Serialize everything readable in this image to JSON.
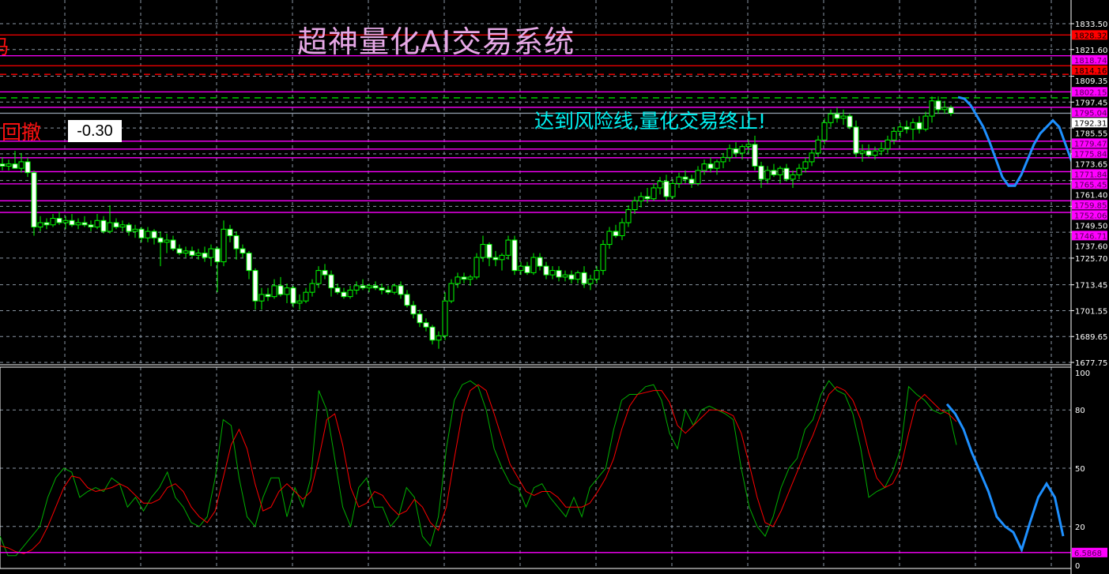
{
  "title": "超神量化AI交易系统",
  "alert_text": "达到风险线,量化交易终止!",
  "drawdown": {
    "label": "回撤",
    "value": "-0.30",
    "partial_char": "码"
  },
  "colors": {
    "background": "#000000",
    "grid": "#8a96a3",
    "candle": "#00ff00",
    "bear_fill": "#ffffff",
    "magenta": "#ff00ff",
    "red": "#ff0000",
    "forecast": "#1e90ff",
    "stoch_k": "#00b000",
    "stoch_d": "#ff0000",
    "alert": "#00f0f0",
    "title": "#e6a8e6"
  },
  "chart_data": [
    {
      "type": "candlestick",
      "ylim": [
        1677.75,
        1833.5
      ],
      "grid": true,
      "y_ticks": [
        "1833.50",
        "1821.60",
        "1809.35",
        "1797.45",
        "1785.55",
        "1773.65",
        "1761.40",
        "1749.50",
        "1737.60",
        "1725.70",
        "1713.45",
        "1701.55",
        "1689.65",
        "1677.75"
      ],
      "ohlc": [
        [
          1769,
          1772,
          1766,
          1768
        ],
        [
          1768,
          1771,
          1766,
          1769
        ],
        [
          1769,
          1775,
          1767,
          1767
        ],
        [
          1767,
          1774,
          1765,
          1770
        ],
        [
          1770,
          1772,
          1763,
          1765
        ],
        [
          1765,
          1766,
          1736,
          1740
        ],
        [
          1740,
          1745,
          1738,
          1742
        ],
        [
          1742,
          1744,
          1739,
          1741
        ],
        [
          1741,
          1746,
          1740,
          1744
        ],
        [
          1744,
          1747,
          1741,
          1742
        ],
        [
          1742,
          1745,
          1739,
          1743
        ],
        [
          1743,
          1746,
          1740,
          1741
        ],
        [
          1741,
          1744,
          1739,
          1742
        ],
        [
          1742,
          1745,
          1740,
          1741
        ],
        [
          1741,
          1743,
          1738,
          1740
        ],
        [
          1740,
          1746,
          1739,
          1743
        ],
        [
          1743,
          1745,
          1737,
          1738
        ],
        [
          1738,
          1750,
          1737,
          1742
        ],
        [
          1742,
          1744,
          1739,
          1740
        ],
        [
          1740,
          1743,
          1738,
          1741
        ],
        [
          1741,
          1742,
          1736,
          1738
        ],
        [
          1738,
          1741,
          1735,
          1739
        ],
        [
          1739,
          1740,
          1733,
          1735
        ],
        [
          1735,
          1740,
          1733,
          1738
        ],
        [
          1738,
          1739,
          1732,
          1735
        ],
        [
          1735,
          1738,
          1722,
          1733
        ],
        [
          1733,
          1737,
          1728,
          1734
        ],
        [
          1734,
          1736,
          1729,
          1730
        ],
        [
          1730,
          1732,
          1727,
          1728
        ],
        [
          1728,
          1731,
          1726,
          1729
        ],
        [
          1729,
          1731,
          1726,
          1727
        ],
        [
          1727,
          1730,
          1725,
          1728
        ],
        [
          1728,
          1731,
          1724,
          1726
        ],
        [
          1726,
          1732,
          1722,
          1730
        ],
        [
          1730,
          1731,
          1710,
          1724
        ],
        [
          1724,
          1743,
          1722,
          1739
        ],
        [
          1739,
          1741,
          1733,
          1736
        ],
        [
          1736,
          1738,
          1725,
          1730
        ],
        [
          1730,
          1732,
          1726,
          1728
        ],
        [
          1728,
          1729,
          1716,
          1720
        ],
        [
          1720,
          1721,
          1702,
          1706
        ],
        [
          1706,
          1712,
          1702,
          1709
        ],
        [
          1709,
          1712,
          1706,
          1708
        ],
        [
          1708,
          1716,
          1707,
          1713
        ],
        [
          1713,
          1717,
          1708,
          1709
        ],
        [
          1709,
          1714,
          1705,
          1712
        ],
        [
          1712,
          1713,
          1703,
          1705
        ],
        [
          1705,
          1709,
          1702,
          1706
        ],
        [
          1706,
          1712,
          1705,
          1710
        ],
        [
          1710,
          1716,
          1708,
          1714
        ],
        [
          1714,
          1722,
          1712,
          1720
        ],
        [
          1720,
          1723,
          1716,
          1718
        ],
        [
          1718,
          1720,
          1708,
          1712
        ],
        [
          1712,
          1714,
          1709,
          1710
        ],
        [
          1710,
          1712,
          1707,
          1708
        ],
        [
          1708,
          1713,
          1707,
          1711
        ],
        [
          1711,
          1715,
          1709,
          1713
        ],
        [
          1713,
          1716,
          1711,
          1712
        ],
        [
          1712,
          1714,
          1710,
          1713
        ],
        [
          1713,
          1715,
          1711,
          1712
        ],
        [
          1712,
          1714,
          1709,
          1711
        ],
        [
          1711,
          1713,
          1709,
          1710
        ],
        [
          1710,
          1714,
          1709,
          1713
        ],
        [
          1713,
          1715,
          1707,
          1709
        ],
        [
          1709,
          1711,
          1703,
          1704
        ],
        [
          1704,
          1706,
          1698,
          1700
        ],
        [
          1700,
          1702,
          1694,
          1696
        ],
        [
          1696,
          1698,
          1692,
          1694
        ],
        [
          1694,
          1695,
          1686,
          1688
        ],
        [
          1688,
          1692,
          1684,
          1690
        ],
        [
          1690,
          1710,
          1688,
          1706
        ],
        [
          1706,
          1716,
          1705,
          1714
        ],
        [
          1714,
          1719,
          1712,
          1717
        ],
        [
          1717,
          1719,
          1714,
          1716
        ],
        [
          1716,
          1718,
          1713,
          1717
        ],
        [
          1717,
          1728,
          1716,
          1726
        ],
        [
          1726,
          1736,
          1724,
          1732
        ],
        [
          1732,
          1733,
          1722,
          1726
        ],
        [
          1726,
          1729,
          1722,
          1725
        ],
        [
          1725,
          1728,
          1720,
          1727
        ],
        [
          1727,
          1736,
          1725,
          1734
        ],
        [
          1734,
          1736,
          1718,
          1720
        ],
        [
          1720,
          1724,
          1718,
          1722
        ],
        [
          1722,
          1724,
          1718,
          1719
        ],
        [
          1719,
          1728,
          1718,
          1726
        ],
        [
          1726,
          1728,
          1720,
          1722
        ],
        [
          1722,
          1724,
          1716,
          1718
        ],
        [
          1718,
          1722,
          1716,
          1720
        ],
        [
          1720,
          1722,
          1715,
          1717
        ],
        [
          1717,
          1720,
          1715,
          1718
        ],
        [
          1718,
          1720,
          1714,
          1716
        ],
        [
          1716,
          1720,
          1714,
          1719
        ],
        [
          1719,
          1722,
          1712,
          1714
        ],
        [
          1714,
          1718,
          1711,
          1716
        ],
        [
          1716,
          1722,
          1714,
          1720
        ],
        [
          1720,
          1734,
          1718,
          1732
        ],
        [
          1732,
          1740,
          1730,
          1738
        ],
        [
          1738,
          1741,
          1735,
          1736
        ],
        [
          1736,
          1744,
          1734,
          1742
        ],
        [
          1742,
          1750,
          1740,
          1748
        ],
        [
          1748,
          1754,
          1746,
          1752
        ],
        [
          1752,
          1756,
          1749,
          1754
        ],
        [
          1754,
          1758,
          1751,
          1753
        ],
        [
          1753,
          1760,
          1752,
          1758
        ],
        [
          1758,
          1763,
          1755,
          1761
        ],
        [
          1761,
          1764,
          1752,
          1754
        ],
        [
          1754,
          1762,
          1753,
          1760
        ],
        [
          1760,
          1765,
          1758,
          1763
        ],
        [
          1763,
          1766,
          1760,
          1762
        ],
        [
          1762,
          1764,
          1758,
          1760
        ],
        [
          1760,
          1768,
          1759,
          1766
        ],
        [
          1766,
          1771,
          1764,
          1769
        ],
        [
          1769,
          1772,
          1765,
          1767
        ],
        [
          1767,
          1771,
          1764,
          1770
        ],
        [
          1770,
          1774,
          1767,
          1772
        ],
        [
          1772,
          1778,
          1770,
          1776
        ],
        [
          1776,
          1779,
          1772,
          1774
        ],
        [
          1774,
          1778,
          1771,
          1777
        ],
        [
          1777,
          1780,
          1774,
          1778
        ],
        [
          1778,
          1782,
          1766,
          1768
        ],
        [
          1768,
          1770,
          1758,
          1762
        ],
        [
          1762,
          1768,
          1760,
          1766
        ],
        [
          1766,
          1769,
          1763,
          1764
        ],
        [
          1764,
          1768,
          1760,
          1767
        ],
        [
          1767,
          1769,
          1761,
          1762
        ],
        [
          1762,
          1766,
          1758,
          1764
        ],
        [
          1764,
          1769,
          1762,
          1767
        ],
        [
          1767,
          1772,
          1765,
          1770
        ],
        [
          1770,
          1776,
          1768,
          1774
        ],
        [
          1774,
          1782,
          1772,
          1780
        ],
        [
          1780,
          1790,
          1778,
          1788
        ],
        [
          1788,
          1794,
          1786,
          1792
        ],
        [
          1792,
          1795,
          1788,
          1790
        ],
        [
          1790,
          1794,
          1787,
          1791
        ],
        [
          1791,
          1792,
          1785,
          1786
        ],
        [
          1786,
          1789,
          1772,
          1774
        ],
        [
          1774,
          1778,
          1770,
          1775
        ],
        [
          1775,
          1778,
          1772,
          1773
        ],
        [
          1773,
          1777,
          1771,
          1775
        ],
        [
          1775,
          1779,
          1773,
          1776
        ],
        [
          1776,
          1782,
          1774,
          1780
        ],
        [
          1780,
          1786,
          1778,
          1784
        ],
        [
          1784,
          1788,
          1781,
          1786
        ],
        [
          1786,
          1789,
          1783,
          1785
        ],
        [
          1785,
          1790,
          1780,
          1788
        ],
        [
          1788,
          1791,
          1783,
          1785
        ],
        [
          1785,
          1793,
          1784,
          1791
        ],
        [
          1791,
          1800,
          1788,
          1798
        ],
        [
          1798,
          1800,
          1792,
          1794
        ],
        [
          1794,
          1798,
          1792,
          1795
        ],
        [
          1795,
          1796,
          1791,
          1792.3
        ]
      ],
      "forecast": [
        1799.7,
        1799,
        1796,
        1791,
        1786,
        1779,
        1771,
        1763,
        1759,
        1759,
        1764,
        1771,
        1778,
        1783,
        1786,
        1789,
        1786,
        1778,
        1770,
        1764
      ],
      "levels": [
        {
          "price": 1828.32,
          "label": "1828.32",
          "color": "#ff0000",
          "style": "solid"
        },
        {
          "price": 1818.74,
          "label": "1818.74",
          "color": "#ff00ff",
          "style": "solid"
        },
        {
          "price": 1814.16,
          "label": "1814.16",
          "color": "#ff0000",
          "style": "solid"
        },
        {
          "price": 1810.2,
          "label": "",
          "color": "#ff0000",
          "style": "dashed"
        },
        {
          "price": 1802.15,
          "label": "1802.15",
          "color": "#ff00ff",
          "style": "solid"
        },
        {
          "price": 1799.4,
          "label": "",
          "color": "#00dd00",
          "style": "dashed"
        },
        {
          "price": 1795.04,
          "label": "1795.04",
          "color": "#ff00ff",
          "style": "solid"
        },
        {
          "price": 1792.31,
          "label": "1792.31",
          "color": "#8a96a3",
          "style": "solid",
          "label_bg": "#ffffff"
        },
        {
          "price": 1779.47,
          "label": "1779.47",
          "color": "#ff00ff",
          "style": "solid"
        },
        {
          "price": 1775.84,
          "label": "1775.84",
          "color": "#ff00ff",
          "style": "solid"
        },
        {
          "price": 1771.84,
          "label": "1771.84",
          "color": "#ff00ff",
          "style": "solid"
        },
        {
          "price": 1765.45,
          "label": "1765.45",
          "color": "#ff00ff",
          "style": "solid"
        },
        {
          "price": 1759.85,
          "label": "1759.85",
          "color": "#ff00ff",
          "style": "solid"
        },
        {
          "price": 1752.06,
          "label": "1752.06",
          "color": "#ff00ff",
          "style": "solid"
        },
        {
          "price": 1746.71,
          "label": "1746.71",
          "color": "#ff00ff",
          "style": "solid"
        }
      ]
    },
    {
      "type": "line",
      "ylim": [
        0,
        100
      ],
      "grid": true,
      "y_ticks": [
        "100",
        "80",
        "50",
        "20",
        "0"
      ],
      "k": [
        15,
        5,
        5,
        10,
        15,
        20,
        35,
        45,
        50,
        48,
        35,
        38,
        40,
        38,
        45,
        42,
        30,
        35,
        28,
        35,
        40,
        48,
        35,
        30,
        22,
        20,
        25,
        45,
        75,
        72,
        45,
        25,
        20,
        35,
        45,
        45,
        25,
        40,
        30,
        45,
        90,
        80,
        55,
        30,
        20,
        40,
        45,
        30,
        30,
        20,
        25,
        40,
        35,
        15,
        10,
        25,
        60,
        85,
        93,
        95,
        92,
        80,
        60,
        50,
        42,
        40,
        30,
        40,
        42,
        35,
        30,
        25,
        35,
        25,
        40,
        45,
        50,
        70,
        85,
        88,
        88,
        92,
        93,
        85,
        68,
        60,
        80,
        72,
        80,
        82,
        80,
        78,
        75,
        50,
        30,
        20,
        15,
        25,
        40,
        50,
        55,
        70,
        75,
        88,
        95,
        90,
        88,
        78,
        60,
        35,
        38,
        40,
        48,
        60,
        92,
        88,
        85,
        80,
        78,
        80,
        62
      ],
      "d": [
        10,
        9,
        7,
        6,
        8,
        12,
        20,
        30,
        40,
        46,
        45,
        40,
        38,
        39,
        40,
        42,
        40,
        36,
        32,
        32,
        34,
        40,
        42,
        38,
        30,
        25,
        22,
        28,
        45,
        62,
        70,
        60,
        42,
        28,
        30,
        38,
        42,
        38,
        34,
        38,
        55,
        75,
        78,
        62,
        40,
        30,
        32,
        38,
        36,
        30,
        26,
        28,
        34,
        30,
        22,
        18,
        30,
        55,
        78,
        90,
        93,
        90,
        78,
        65,
        52,
        45,
        38,
        36,
        38,
        38,
        35,
        30,
        30,
        30,
        32,
        38,
        45,
        55,
        70,
        82,
        88,
        89,
        90,
        90,
        84,
        72,
        68,
        72,
        76,
        80,
        80,
        79,
        77,
        68,
        52,
        35,
        22,
        20,
        28,
        38,
        48,
        58,
        67,
        78,
        88,
        92,
        90,
        85,
        75,
        58,
        45,
        40,
        42,
        50,
        68,
        84,
        88,
        84,
        80,
        78,
        74
      ],
      "forecast": [
        83,
        78,
        70,
        58,
        48,
        38,
        25,
        20,
        17,
        8,
        22,
        35,
        42,
        35,
        15
      ],
      "level": {
        "value": 6.5868,
        "label": "6.5868",
        "color": "#ff00ff"
      }
    }
  ]
}
